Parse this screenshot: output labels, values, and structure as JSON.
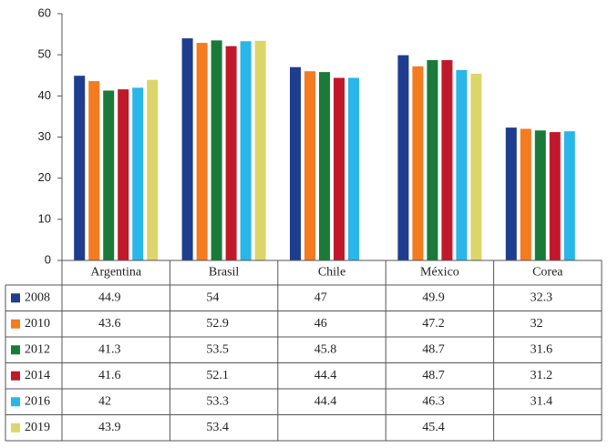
{
  "chart_data": {
    "type": "bar",
    "categories": [
      "Argentina",
      "Brasil",
      "Chile",
      "México",
      "Corea"
    ],
    "series": [
      {
        "name": "2008",
        "color": "#1f3d8f",
        "values": [
          44.9,
          54,
          47,
          49.9,
          32.3
        ]
      },
      {
        "name": "2010",
        "color": "#f47b20",
        "values": [
          43.6,
          52.9,
          46,
          47.2,
          32
        ]
      },
      {
        "name": "2012",
        "color": "#1a7a3a",
        "values": [
          41.3,
          53.5,
          45.8,
          48.7,
          31.6
        ]
      },
      {
        "name": "2014",
        "color": "#c0192b",
        "values": [
          41.6,
          52.1,
          44.4,
          48.7,
          31.2
        ]
      },
      {
        "name": "2016",
        "color": "#29b6e8",
        "values": [
          42,
          53.3,
          44.4,
          46.3,
          31.4
        ]
      },
      {
        "name": "2019",
        "color": "#dcd56a",
        "values": [
          43.9,
          53.4,
          null,
          45.4,
          null
        ]
      }
    ],
    "ylim": [
      0,
      60
    ],
    "yticks": [
      0,
      10,
      20,
      30,
      40,
      50,
      60
    ],
    "data_table": true
  }
}
